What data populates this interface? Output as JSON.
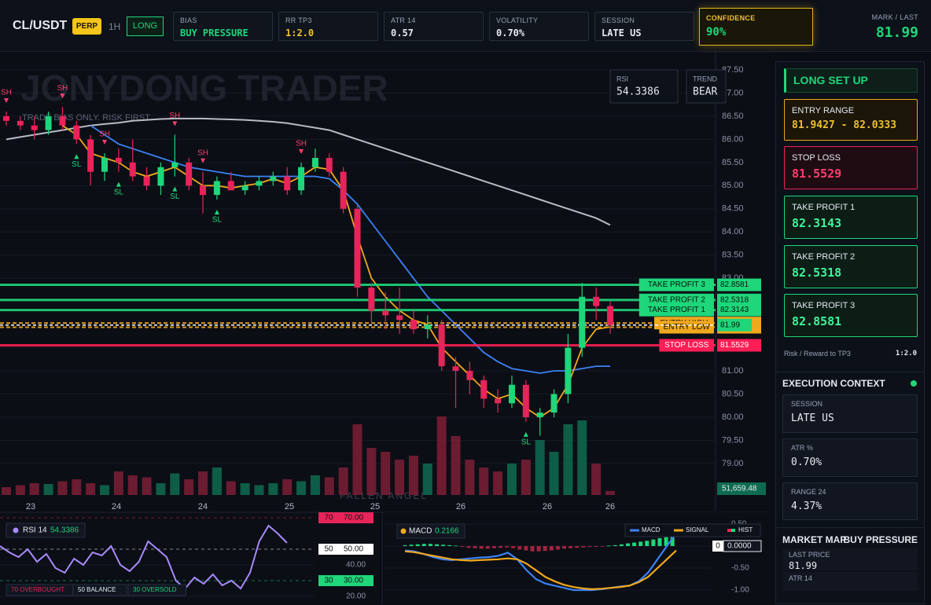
{
  "header": {
    "symbol": "CL/USDT",
    "badge": "PERP",
    "timeframe": "1H",
    "side": "LONG",
    "cards": [
      {
        "label": "BIAS",
        "value": "BUY PRESSURE"
      },
      {
        "label": "RR TP3",
        "value": "1:2.0"
      },
      {
        "label": "ATR 14",
        "value": "0.57"
      },
      {
        "label": "VOLATILITY",
        "value": "0.70%"
      },
      {
        "label": "SESSION",
        "value": "LATE US"
      }
    ],
    "confidence": {
      "label": "CONFIDENCE",
      "value": "90%"
    },
    "mark": {
      "label": "MARK / LAST",
      "value": "81.99"
    }
  },
  "price_chart": {
    "type": "candlestick",
    "watermark": "JONYDONG TRADER",
    "tagline": "TRADE BIAS ONLY. RISK FIRST.",
    "footer_mark": "FALLEN ANGEL",
    "ylim": [
      78.15,
      87.89
    ],
    "yticks": [
      {
        "value": 87.5,
        "label": "87.50"
      },
      {
        "value": 87,
        "label": "87.00"
      },
      {
        "value": 86.5,
        "label": "86.50"
      },
      {
        "value": 86,
        "label": "86.00"
      },
      {
        "value": 85.5,
        "label": "85.50"
      },
      {
        "value": 85,
        "label": "85.00"
      },
      {
        "value": 84.5,
        "label": "84.50"
      },
      {
        "value": 84,
        "label": "84.00"
      },
      {
        "value": 83.5,
        "label": "83.50"
      },
      {
        "value": 83,
        "label": "83.00"
      },
      {
        "value": 82.5,
        "label": "82.50"
      },
      {
        "value": 82,
        "label": "82.00"
      },
      {
        "value": 81.5,
        "label": "81.50"
      },
      {
        "value": 81,
        "label": "81.00"
      },
      {
        "value": 80.5,
        "label": "80.50"
      },
      {
        "value": 80,
        "label": "80.00"
      },
      {
        "value": 79.5,
        "label": "79.50"
      },
      {
        "value": 79,
        "label": "79.00"
      }
    ],
    "x_labels": [
      "23",
      "24",
      "24",
      "25",
      "25",
      "26",
      "26",
      "26"
    ],
    "up_color": "#1fd67a",
    "down_color": "#e8245a",
    "candles": [
      [
        86.5,
        86.6,
        86.3,
        86.4
      ],
      [
        86.4,
        86.5,
        86.2,
        86.3
      ],
      [
        86.3,
        86.5,
        86.0,
        86.2
      ],
      [
        86.2,
        86.6,
        86.1,
        86.5
      ],
      [
        86.5,
        86.7,
        86.2,
        86.3
      ],
      [
        86.3,
        86.4,
        85.9,
        86.0
      ],
      [
        86.0,
        86.1,
        85.0,
        85.3
      ],
      [
        85.3,
        85.7,
        85.1,
        85.6
      ],
      [
        85.6,
        85.8,
        85.3,
        85.5
      ],
      [
        85.5,
        86.0,
        85.1,
        85.2
      ],
      [
        85.2,
        85.4,
        84.9,
        85.0
      ],
      [
        85.0,
        85.5,
        84.8,
        85.4
      ],
      [
        85.4,
        86.1,
        85.2,
        85.5
      ],
      [
        85.5,
        85.6,
        84.9,
        85.0
      ],
      [
        85.0,
        85.3,
        84.4,
        84.8
      ],
      [
        84.8,
        85.2,
        84.7,
        85.1
      ],
      [
        85.1,
        85.3,
        84.9,
        84.9
      ],
      [
        84.9,
        85.1,
        84.8,
        85.0
      ],
      [
        85.0,
        85.2,
        84.9,
        85.1
      ],
      [
        85.1,
        85.3,
        85.0,
        85.2
      ],
      [
        85.2,
        85.4,
        84.8,
        84.9
      ],
      [
        84.9,
        85.5,
        84.8,
        85.4
      ],
      [
        85.4,
        85.8,
        85.3,
        85.6
      ],
      [
        85.6,
        85.7,
        85.2,
        85.3
      ],
      [
        85.3,
        85.4,
        84.4,
        84.5
      ],
      [
        84.5,
        84.6,
        82.6,
        82.8
      ],
      [
        82.8,
        82.9,
        82.0,
        82.3
      ],
      [
        82.3,
        82.7,
        81.9,
        82.2
      ],
      [
        82.2,
        82.8,
        81.8,
        82.1
      ],
      [
        82.1,
        82.3,
        81.8,
        81.9
      ],
      [
        81.9,
        82.2,
        81.7,
        82.0
      ],
      [
        82.0,
        82.1,
        81.0,
        81.1
      ],
      [
        81.1,
        81.3,
        80.2,
        81.0
      ],
      [
        81.0,
        81.2,
        80.5,
        80.8
      ],
      [
        80.8,
        80.9,
        80.2,
        80.4
      ],
      [
        80.4,
        80.6,
        80.1,
        80.3
      ],
      [
        80.3,
        80.9,
        80.2,
        80.7
      ],
      [
        80.7,
        80.8,
        79.9,
        80.0
      ],
      [
        80.0,
        80.2,
        79.6,
        80.1
      ],
      [
        80.1,
        80.6,
        80.0,
        80.5
      ],
      [
        80.5,
        81.8,
        80.3,
        81.5
      ],
      [
        81.5,
        82.9,
        81.3,
        82.6
      ],
      [
        82.6,
        82.8,
        82.1,
        82.4
      ],
      [
        82.4,
        82.5,
        81.8,
        81.99
      ]
    ],
    "volumes": [
      100000,
      125000,
      150000,
      140000,
      175000,
      200000,
      150000,
      125000,
      300000,
      250000,
      225000,
      150000,
      275000,
      200000,
      300000,
      350000,
      175000,
      150000,
      125000,
      150000,
      200000,
      175000,
      250000,
      225000,
      350000,
      900000,
      600000,
      550000,
      450000,
      500000,
      400000,
      1000000,
      750000,
      450000,
      350000,
      300000,
      400000,
      450000,
      700000,
      550000,
      900000,
      950000,
      400000,
      51659.48
    ],
    "volume_label": {
      "value": 51659.48,
      "label": "51,659.48"
    },
    "lines": [
      {
        "color": "#b8bcc4",
        "values": [
          86.0,
          86.05,
          86.1,
          86.15,
          86.2,
          86.25,
          86.3,
          86.33,
          86.36,
          86.4,
          86.42,
          86.44,
          86.45,
          86.45,
          86.45,
          86.44,
          86.43,
          86.42,
          86.4,
          86.38,
          86.35,
          86.3,
          86.25,
          86.2,
          86.1,
          86.0,
          85.9,
          85.8,
          85.7,
          85.6,
          85.5,
          85.4,
          85.3,
          85.2,
          85.1,
          85.0,
          84.9,
          84.8,
          84.7,
          84.6,
          84.5,
          84.4,
          84.3,
          84.15
        ]
      },
      {
        "color": "#3b82f6",
        "values": [
          null,
          null,
          null,
          null,
          null,
          null,
          86.3,
          86.1,
          85.9,
          85.8,
          85.7,
          85.6,
          85.5,
          85.4,
          85.35,
          85.3,
          85.25,
          85.2,
          85.2,
          85.2,
          85.2,
          85.2,
          85.2,
          85.15,
          84.9,
          84.6,
          84.2,
          83.8,
          83.4,
          83.0,
          82.6,
          82.3,
          82.0,
          81.7,
          81.4,
          81.2,
          81.05,
          81.0,
          80.95,
          81.0,
          81.0,
          81.05,
          81.1,
          81.1
        ]
      },
      {
        "color": "#f0a81c",
        "values": [
          null,
          null,
          null,
          null,
          86.3,
          86.1,
          85.7,
          85.6,
          85.5,
          85.3,
          85.2,
          85.3,
          85.4,
          85.2,
          85.0,
          85.0,
          84.95,
          85.0,
          85.05,
          85.15,
          85.05,
          85.2,
          85.4,
          85.35,
          84.9,
          83.9,
          83.0,
          82.6,
          82.3,
          82.1,
          82.0,
          81.5,
          81.2,
          80.9,
          80.6,
          80.4,
          80.5,
          80.2,
          80.0,
          80.2,
          80.7,
          81.5,
          81.9,
          81.95
        ]
      }
    ],
    "levels": [
      {
        "label": "TAKE PROFIT 3",
        "value": 82.8581,
        "color": "#1fd67a",
        "text_color": "#06140c"
      },
      {
        "label": "TAKE PROFIT 2",
        "value": 82.5318,
        "color": "#1fd67a",
        "text_color": "#06140c"
      },
      {
        "label": "TAKE PROFIT 1",
        "value": 82.3143,
        "color": "#1fd67a",
        "text_color": "#06140c"
      },
      {
        "label": "ENTRY HIGH",
        "value": 82.0333,
        "color": "#f0a81c",
        "text_color": "#1a1204"
      },
      {
        "label": "ENTRY LOW",
        "value": 81.9427,
        "color": "#f0a81c",
        "text_color": "#1a1204"
      },
      {
        "label": "STOP LOSS",
        "value": 81.5529,
        "color": "#ff1e56",
        "text_color": "#ffffff"
      }
    ],
    "last_price": {
      "value": 81.99,
      "color": "#1fd67a"
    },
    "markers": [
      "SH",
      "SH",
      "SH",
      "SH",
      "SH",
      "SH",
      "SL",
      "SL",
      "SL",
      "SL",
      "SL"
    ],
    "overlay": [
      {
        "label": "RSI",
        "value": "54.3386"
      },
      {
        "label": "TREND",
        "value": "BEAR"
      }
    ]
  },
  "rsi_panel": {
    "type": "line",
    "title": "RSI 14",
    "value": 54.3386,
    "color": "#a78bfa",
    "ylim": [
      17,
      72
    ],
    "yticks": [
      {
        "value": 70,
        "label": "70.00"
      },
      {
        "value": 50,
        "label": "50.00"
      },
      {
        "value": 40,
        "label": "40.00"
      },
      {
        "value": 30,
        "label": "30.00"
      },
      {
        "value": 20,
        "label": "20.00"
      }
    ],
    "level_tags": [
      {
        "value": 70,
        "color": "#e8245a"
      },
      {
        "value": 50,
        "color": "#ffffff"
      },
      {
        "value": 30,
        "color": "#1fd67a"
      }
    ],
    "legend": [
      "70 OVERBOUGHT",
      "50 BALANCE",
      "30 OVERSOLD"
    ],
    "values": [
      52,
      48,
      45,
      50,
      42,
      47,
      38,
      35,
      44,
      40,
      48,
      46,
      52,
      40,
      36,
      42,
      55,
      50,
      45,
      30,
      25,
      32,
      28,
      34,
      27,
      30,
      25,
      35,
      55,
      65,
      60,
      54
    ]
  },
  "macd_panel": {
    "type": "line",
    "title": "MACD",
    "value": 0.2166,
    "ylim": [
      -1.25,
      0.714
    ],
    "yticks": [
      {
        "value": 0.5,
        "label": "0.50"
      },
      {
        "value": 0,
        "label": "0.0000"
      },
      {
        "value": -0.5,
        "label": "-0.50"
      },
      {
        "value": -1,
        "label": "-1.00"
      }
    ],
    "zero_tag": 0,
    "series": [
      {
        "name": "MACD",
        "color": "#3b82f6",
        "values": [
          -0.1,
          -0.12,
          -0.18,
          -0.25,
          -0.3,
          -0.32,
          -0.3,
          -0.28,
          -0.26,
          -0.25,
          -0.22,
          -0.15,
          -0.3,
          -0.55,
          -0.75,
          -0.85,
          -0.9,
          -0.95,
          -1.0,
          -1.0,
          -1.0,
          -0.98,
          -0.95,
          -0.92,
          -0.9,
          -0.8,
          -0.6,
          -0.3,
          0.0,
          0.3
        ]
      },
      {
        "name": "SIGNAL",
        "color": "#f0a81c",
        "values": [
          -0.12,
          -0.14,
          -0.18,
          -0.22,
          -0.26,
          -0.3,
          -0.32,
          -0.33,
          -0.32,
          -0.31,
          -0.3,
          -0.28,
          -0.3,
          -0.4,
          -0.55,
          -0.7,
          -0.8,
          -0.88,
          -0.93,
          -0.96,
          -0.98,
          -0.97,
          -0.95,
          -0.93,
          -0.9,
          -0.82,
          -0.7,
          -0.5,
          -0.3,
          -0.1
        ]
      }
    ],
    "hist_name": "HIST",
    "hist": [
      0.02,
      0.03,
      0.04,
      0.05,
      0.05,
      0.04,
      0.03,
      0.02,
      0.01,
      -0.02,
      -0.04,
      -0.05,
      -0.06,
      -0.06,
      -0.05,
      -0.04,
      -0.03,
      -0.05,
      -0.08,
      -0.1,
      -0.12,
      -0.12,
      -0.11,
      -0.1,
      -0.08,
      -0.06,
      -0.05,
      -0.04,
      -0.03,
      -0.02,
      -0.02,
      -0.01,
      0.01,
      0.02,
      0.04,
      0.06,
      0.08,
      0.1,
      0.12,
      0.15,
      0.18,
      0.2,
      0.22
    ]
  },
  "side_panel": {
    "title": "LONG SET UP",
    "cards": [
      {
        "label": "ENTRY RANGE",
        "value": "81.9427 - 82.0333"
      },
      {
        "label": "STOP LOSS",
        "value": "81.5529"
      },
      {
        "label": "TAKE PROFIT 1",
        "value": "82.3143"
      },
      {
        "label": "TAKE PROFIT 2",
        "value": "82.5318"
      },
      {
        "label": "TAKE PROFIT 3",
        "value": "82.8581"
      }
    ],
    "rr_label": "Risk / Reward to TP3",
    "rr_value": "1:2.0",
    "context_title": "EXECUTION CONTEXT",
    "context": [
      {
        "label": "SESSION",
        "value": "LATE US"
      },
      {
        "label": "ATR %",
        "value": "0.70%"
      },
      {
        "label": "RANGE 24",
        "value": "4.37%"
      }
    ],
    "map_title": "MARKET MAP",
    "map_value": "BUY PRESSURE",
    "map_rows": [
      {
        "label": "LAST PRICE",
        "value": "81.99"
      },
      {
        "label": "ATR 14",
        "value": ""
      }
    ]
  }
}
